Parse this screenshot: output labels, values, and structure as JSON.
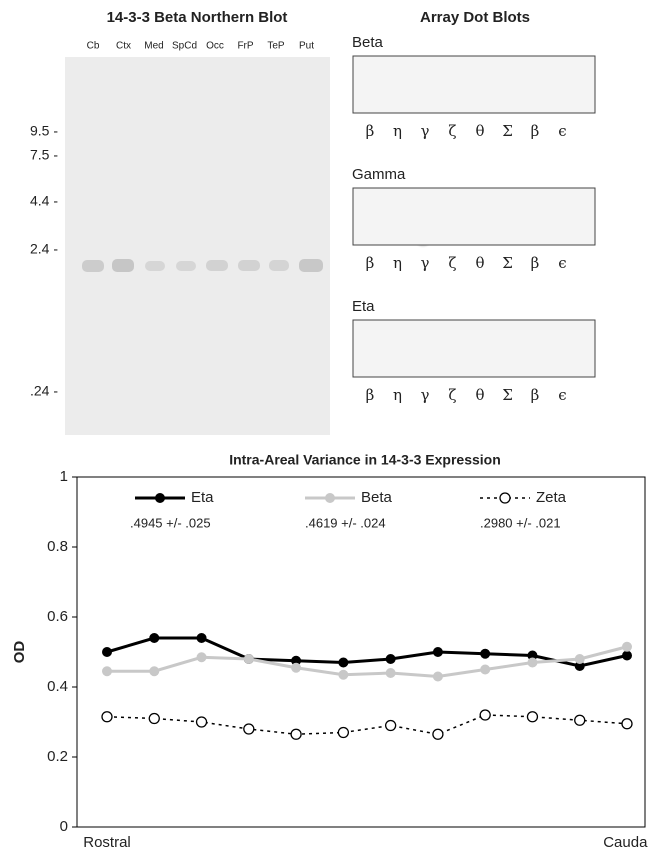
{
  "northern_blot": {
    "title": "14-3-3 Beta Northern Blot",
    "lanes": [
      "Cb",
      "Ctx",
      "Med",
      "SpCd",
      "Occ",
      "FrP",
      "TeP",
      "Put"
    ],
    "size_markers": [
      "9.5 -",
      "7.5 -",
      "4.4 -",
      "2.4 -",
      ".24 -"
    ]
  },
  "dot_blots": {
    "title": "Array Dot Blots",
    "labels": [
      "β",
      "η",
      "γ",
      "ζ",
      "θ",
      "Σ",
      "β",
      "ϵ"
    ],
    "panels": [
      {
        "name": "Beta"
      },
      {
        "name": "Gamma"
      },
      {
        "name": "Eta"
      }
    ]
  },
  "chart_data": {
    "type": "line",
    "title": "Intra-Areal Variance in 14-3-3 Expression",
    "y_label": "OD",
    "categories": [
      "Rostral",
      null,
      null,
      null,
      null,
      null,
      null,
      null,
      null,
      null,
      null,
      "Caudal"
    ],
    "ylim": [
      0,
      1
    ],
    "yticks": [
      0,
      0.2,
      0.4,
      0.6,
      0.8,
      1
    ],
    "series": [
      {
        "name": "Eta",
        "stat": ".4945 +/- .025",
        "color": "#000000",
        "dash": "solid",
        "marker": "filled",
        "values": [
          0.5,
          0.54,
          0.54,
          0.48,
          0.475,
          0.47,
          0.48,
          0.5,
          0.495,
          0.49,
          0.46,
          0.49
        ]
      },
      {
        "name": "Beta",
        "stat": ".4619 +/- .024",
        "color": "#c8c8c8",
        "dash": "solid",
        "marker": "filled",
        "values": [
          0.445,
          0.445,
          0.485,
          0.48,
          0.455,
          0.435,
          0.44,
          0.43,
          0.45,
          0.47,
          0.48,
          0.515
        ]
      },
      {
        "name": "Zeta",
        "stat": ".2980 +/- .021",
        "color": "#000000",
        "dash": "dotted",
        "marker": "open",
        "values": [
          0.315,
          0.31,
          0.3,
          0.28,
          0.265,
          0.27,
          0.29,
          0.265,
          0.32,
          0.315,
          0.305,
          0.295
        ]
      }
    ]
  }
}
